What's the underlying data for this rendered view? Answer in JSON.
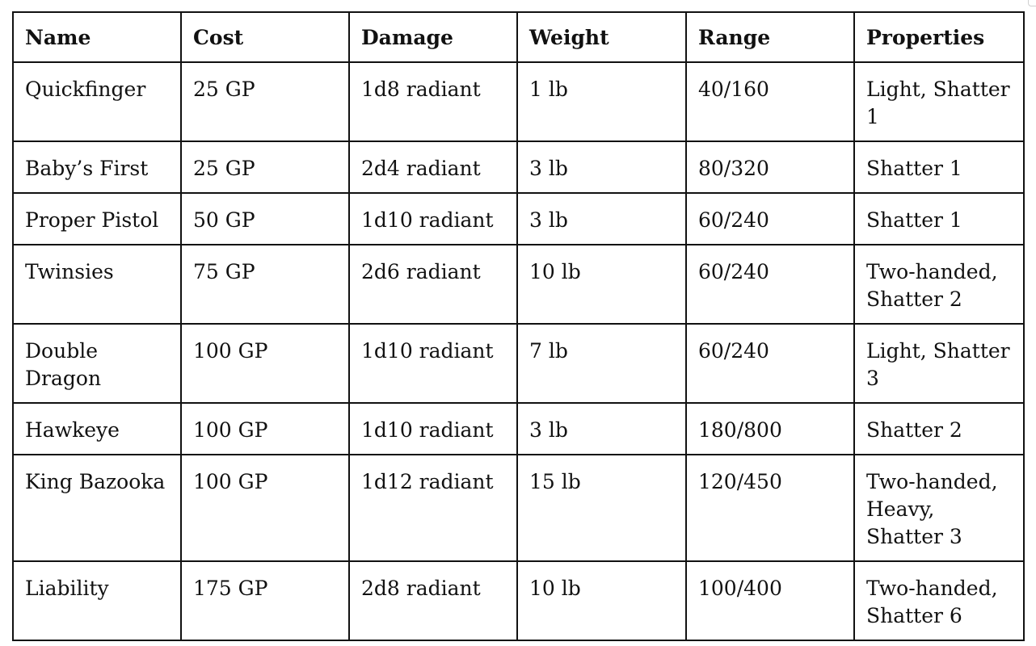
{
  "table": {
    "headers": [
      "Name",
      "Cost",
      "Damage",
      "Weight",
      "Range",
      "Properties"
    ],
    "rows": [
      [
        "Quickfinger",
        "25 GP",
        "1d8 radiant",
        "1 lb",
        "40/160",
        "Light, Shatter 1"
      ],
      [
        "Baby’s First",
        "25 GP",
        "2d4 radiant",
        "3 lb",
        "80/320",
        "Shatter 1"
      ],
      [
        "Proper Pistol",
        "50 GP",
        "1d10 radiant",
        "3 lb",
        "60/240",
        "Shatter 1"
      ],
      [
        "Twinsies",
        "75 GP",
        "2d6 radiant",
        "10 lb",
        "60/240",
        "Two-handed, Shatter 2"
      ],
      [
        "Double Dragon",
        "100 GP",
        "1d10 radiant",
        "7 lb",
        "60/240",
        "Light, Shatter 3"
      ],
      [
        "Hawkeye",
        "100 GP",
        "1d10 radiant",
        "3 lb",
        "180/800",
        "Shatter 2"
      ],
      [
        "King Bazooka",
        "100 GP",
        "1d12 radiant",
        "15 lb",
        "120/450",
        "Two-handed, Heavy, Shatter 3"
      ],
      [
        "Liability",
        "175 GP",
        "2d8 radiant",
        "10 lb",
        "100/400",
        "Two-handed, Shatter 6"
      ]
    ]
  }
}
